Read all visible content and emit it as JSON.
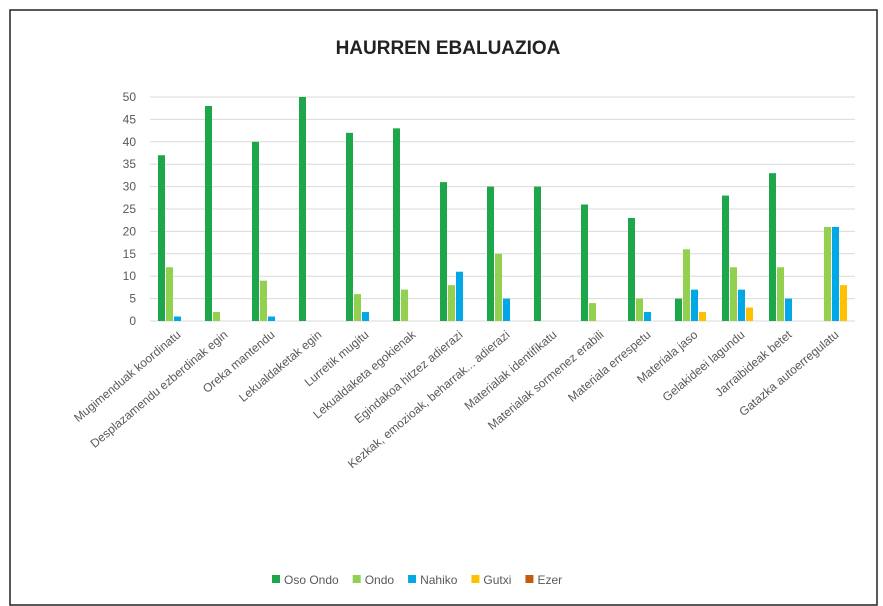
{
  "chart_data": {
    "type": "bar",
    "title": "HAURREN EBALUAZIOA",
    "categories": [
      "Mugimenduak koordinatu",
      "Desplazamendu ezberdinak egin",
      "Oreka mantendu",
      "Lekualdaketak egin",
      "Lurretik mugitu",
      "Lekualdaketa egokienak",
      "Egindakoa hitzez adierazi",
      "Kezkak, emozioak, beharrak... adierazi",
      "Materialak identifikatu",
      "Materialak sormenez erabili",
      "Materiala errespetu",
      "Materiala jaso",
      "Gelakideei lagundu",
      "Jarraibideak betet",
      "Gatazka autoerregulatu"
    ],
    "series": [
      {
        "name": "Oso Ondo",
        "color": "#1ea64b",
        "values": [
          37,
          48,
          40,
          50,
          42,
          43,
          31,
          30,
          30,
          26,
          23,
          5,
          28,
          33,
          0
        ]
      },
      {
        "name": "Ondo",
        "color": "#92d050",
        "values": [
          12,
          2,
          9,
          0,
          6,
          7,
          8,
          15,
          0,
          4,
          5,
          16,
          12,
          12,
          21
        ]
      },
      {
        "name": "Nahiko",
        "color": "#00a8e8",
        "values": [
          1,
          0,
          1,
          0,
          2,
          0,
          11,
          5,
          0,
          0,
          2,
          7,
          7,
          5,
          21
        ]
      },
      {
        "name": "Gutxi",
        "color": "#ffc000",
        "values": [
          0,
          0,
          0,
          0,
          0,
          0,
          0,
          0,
          0,
          0,
          0,
          2,
          3,
          0,
          8
        ]
      },
      {
        "name": "Ezer",
        "color": "#c55a11",
        "values": [
          0,
          0,
          0,
          0,
          0,
          0,
          0,
          0,
          0,
          0,
          0,
          0,
          0,
          0,
          0
        ]
      }
    ],
    "ylim": [
      0,
      50
    ],
    "yticks": [
      0,
      5,
      10,
      15,
      20,
      25,
      30,
      35,
      40,
      45,
      50
    ],
    "grid": true,
    "legend": "bottom"
  }
}
